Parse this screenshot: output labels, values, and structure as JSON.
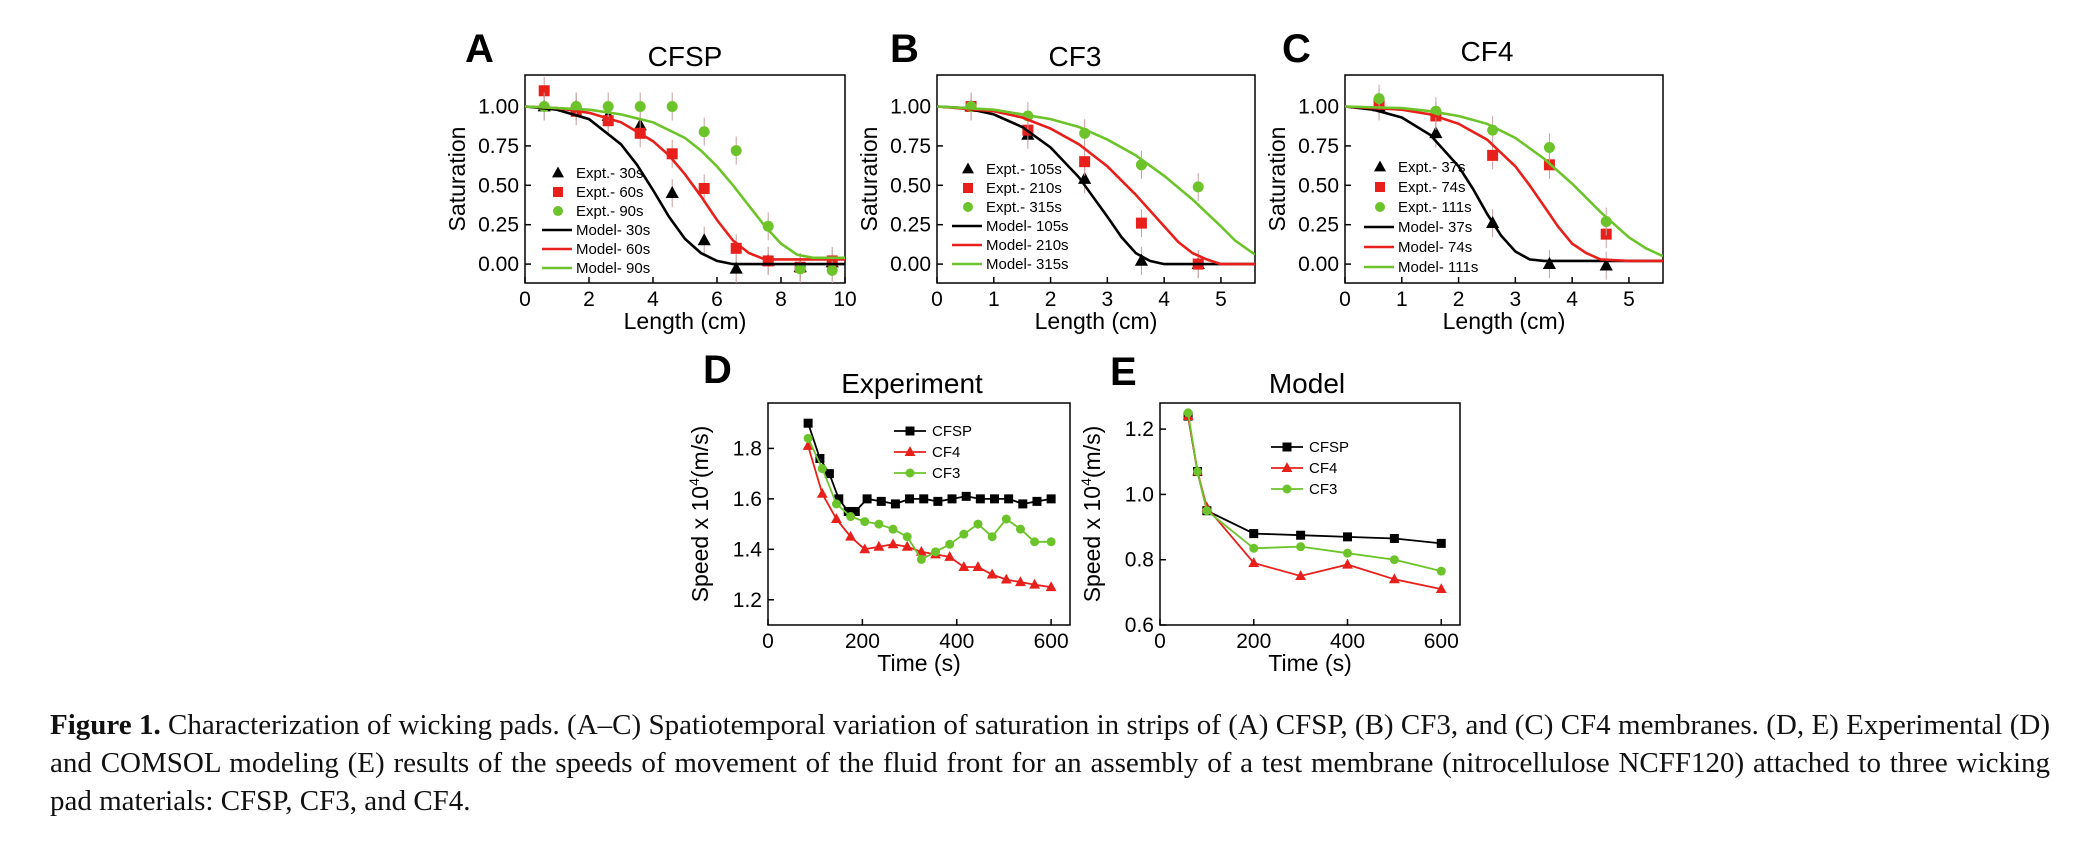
{
  "colors": {
    "black": "#000000",
    "red": "#e8201c",
    "green": "#6cc42a"
  },
  "chart_data": [
    {
      "id": "A",
      "type": "scatter",
      "letter": "A",
      "title": "CFSP",
      "xlabel": "Length (cm)",
      "ylabel": "Saturation",
      "xlim": [
        0,
        10
      ],
      "ylim": [
        -0.12,
        1.2
      ],
      "xticks": [
        0,
        2,
        4,
        6,
        8,
        10
      ],
      "xticklabels": [
        "0",
        "2",
        "4",
        "6",
        "8",
        "10"
      ],
      "yticks": [
        0,
        0.25,
        0.5,
        0.75,
        1.0
      ],
      "yticklabels": [
        "0.00",
        "0.25",
        "0.50",
        "0.75",
        "1.00"
      ],
      "legend_position": "left",
      "series": [
        {
          "name": "Expt.- 30s",
          "kind": "points",
          "marker": "triangle",
          "color": "#000000",
          "x": [
            0.6,
            1.6,
            2.6,
            3.6,
            4.6,
            5.6,
            6.6,
            7.6,
            8.6,
            9.6
          ],
          "y": [
            1.0,
            1.0,
            0.94,
            0.88,
            0.45,
            0.15,
            -0.03,
            0.02,
            -0.02,
            0.01
          ]
        },
        {
          "name": "Expt.- 60s",
          "kind": "points",
          "marker": "square",
          "color": "#e8201c",
          "x": [
            0.6,
            1.6,
            2.6,
            3.6,
            4.6,
            5.6,
            6.6,
            7.6,
            8.6,
            9.6
          ],
          "y": [
            1.1,
            0.97,
            0.91,
            0.83,
            0.7,
            0.48,
            0.1,
            0.02,
            -0.02,
            0.02
          ]
        },
        {
          "name": "Expt.- 90s",
          "kind": "points",
          "marker": "circle",
          "color": "#6cc42a",
          "x": [
            0.6,
            1.6,
            2.6,
            3.6,
            4.6,
            5.6,
            6.6,
            7.6,
            8.6,
            9.6
          ],
          "y": [
            1.0,
            1.0,
            1.0,
            1.0,
            1.0,
            0.84,
            0.72,
            0.24,
            -0.03,
            -0.04
          ]
        },
        {
          "name": "Model- 30s",
          "kind": "line",
          "color": "#000000",
          "x": [
            0,
            1,
            2,
            3,
            3.5,
            4,
            4.5,
            5,
            5.5,
            6,
            6.5,
            7,
            8,
            10
          ],
          "y": [
            1.0,
            0.98,
            0.92,
            0.76,
            0.63,
            0.47,
            0.3,
            0.16,
            0.07,
            0.02,
            0.0,
            0.0,
            0.0,
            0.0
          ]
        },
        {
          "name": "Model- 60s",
          "kind": "line",
          "color": "#e8201c",
          "x": [
            0,
            1,
            2,
            3,
            4,
            4.5,
            5,
            5.5,
            6,
            6.5,
            7,
            7.5,
            8,
            10
          ],
          "y": [
            1.0,
            0.99,
            0.96,
            0.9,
            0.78,
            0.69,
            0.57,
            0.43,
            0.28,
            0.15,
            0.07,
            0.03,
            0.03,
            0.03
          ]
        },
        {
          "name": "Model- 90s",
          "kind": "line",
          "color": "#6cc42a",
          "x": [
            0,
            1,
            2,
            3,
            4,
            5,
            5.5,
            6,
            6.5,
            7,
            7.5,
            8,
            8.5,
            9,
            10
          ],
          "y": [
            1.0,
            0.99,
            0.98,
            0.95,
            0.9,
            0.8,
            0.72,
            0.62,
            0.5,
            0.37,
            0.24,
            0.13,
            0.06,
            0.04,
            0.04
          ]
        }
      ]
    },
    {
      "id": "B",
      "type": "scatter",
      "letter": "B",
      "title": "CF3",
      "xlabel": "Length (cm)",
      "ylabel": "Saturation",
      "xlim": [
        0,
        5.6
      ],
      "ylim": [
        -0.12,
        1.2
      ],
      "xticks": [
        0,
        1,
        2,
        3,
        4,
        5
      ],
      "xticklabels": [
        "0",
        "1",
        "2",
        "3",
        "4",
        "5"
      ],
      "yticks": [
        0,
        0.25,
        0.5,
        0.75,
        1.0
      ],
      "yticklabels": [
        "0.00",
        "0.25",
        "0.50",
        "0.75",
        "1.00"
      ],
      "legend_position": "left",
      "series": [
        {
          "name": "Expt.- 105s",
          "kind": "points",
          "marker": "triangle",
          "color": "#000000",
          "x": [
            0.6,
            1.6,
            2.6,
            3.6,
            4.6
          ],
          "y": [
            1.0,
            0.82,
            0.54,
            0.02,
            0.0
          ]
        },
        {
          "name": "Expt.- 210s",
          "kind": "points",
          "marker": "square",
          "color": "#e8201c",
          "x": [
            0.6,
            1.6,
            2.6,
            3.6,
            4.6
          ],
          "y": [
            1.0,
            0.85,
            0.65,
            0.26,
            0.0
          ]
        },
        {
          "name": "Expt.- 315s",
          "kind": "points",
          "marker": "circle",
          "color": "#6cc42a",
          "x": [
            0.6,
            1.6,
            2.6,
            3.6,
            4.6
          ],
          "y": [
            1.0,
            0.94,
            0.83,
            0.63,
            0.49
          ]
        },
        {
          "name": "Model- 105s",
          "kind": "line",
          "color": "#000000",
          "x": [
            0,
            0.5,
            1,
            1.5,
            2,
            2.5,
            3,
            3.25,
            3.5,
            3.75,
            4,
            4.5,
            5.6
          ],
          "y": [
            1.0,
            0.99,
            0.95,
            0.87,
            0.74,
            0.55,
            0.3,
            0.17,
            0.07,
            0.02,
            0.0,
            0.0,
            0.0
          ]
        },
        {
          "name": "Model- 210s",
          "kind": "line",
          "color": "#e8201c",
          "x": [
            0,
            1,
            1.5,
            2,
            2.5,
            3,
            3.5,
            4,
            4.25,
            4.5,
            4.75,
            5,
            5.6
          ],
          "y": [
            1.0,
            0.97,
            0.93,
            0.86,
            0.76,
            0.62,
            0.44,
            0.24,
            0.14,
            0.07,
            0.03,
            0.0,
            0.0
          ]
        },
        {
          "name": "Model- 315s",
          "kind": "line",
          "color": "#6cc42a",
          "x": [
            0,
            1,
            2,
            2.5,
            3,
            3.5,
            4,
            4.5,
            5,
            5.25,
            5.6
          ],
          "y": [
            1.0,
            0.98,
            0.92,
            0.87,
            0.79,
            0.69,
            0.56,
            0.41,
            0.24,
            0.15,
            0.06
          ]
        }
      ]
    },
    {
      "id": "C",
      "type": "scatter",
      "letter": "C",
      "title": "CF4",
      "xlabel": "Length (cm)",
      "ylabel": "Saturation",
      "xlim": [
        0,
        5.6
      ],
      "ylim": [
        -0.12,
        1.2
      ],
      "xticks": [
        0,
        1,
        2,
        3,
        4,
        5
      ],
      "xticklabels": [
        "0",
        "1",
        "2",
        "3",
        "4",
        "5"
      ],
      "yticks": [
        0,
        0.25,
        0.5,
        0.75,
        1.0
      ],
      "yticklabels": [
        "0.00",
        "0.25",
        "0.50",
        "0.75",
        "1.00"
      ],
      "legend_position": "left",
      "series": [
        {
          "name": "Expt.- 37s",
          "kind": "points",
          "marker": "triangle",
          "color": "#000000",
          "x": [
            0.6,
            1.6,
            2.6,
            3.6,
            4.6
          ],
          "y": [
            1.0,
            0.83,
            0.26,
            0.0,
            -0.01
          ]
        },
        {
          "name": "Expt.- 74s",
          "kind": "points",
          "marker": "square",
          "color": "#e8201c",
          "x": [
            0.6,
            1.6,
            2.6,
            3.6,
            4.6
          ],
          "y": [
            1.02,
            0.94,
            0.69,
            0.63,
            0.19
          ]
        },
        {
          "name": "Expt.- 111s",
          "kind": "points",
          "marker": "circle",
          "color": "#6cc42a",
          "x": [
            0.6,
            1.6,
            2.6,
            3.6,
            4.6
          ],
          "y": [
            1.05,
            0.97,
            0.85,
            0.74,
            0.27
          ]
        },
        {
          "name": "Model- 37s",
          "kind": "line",
          "color": "#000000",
          "x": [
            0,
            0.5,
            1,
            1.5,
            2,
            2.25,
            2.5,
            2.75,
            3,
            3.25,
            3.5,
            4,
            5.6
          ],
          "y": [
            1.0,
            0.98,
            0.93,
            0.82,
            0.62,
            0.48,
            0.32,
            0.18,
            0.08,
            0.03,
            0.02,
            0.02,
            0.02
          ]
        },
        {
          "name": "Model- 74s",
          "kind": "line",
          "color": "#e8201c",
          "x": [
            0,
            0.5,
            1,
            1.5,
            2,
            2.5,
            3,
            3.25,
            3.5,
            3.75,
            4,
            4.25,
            4.5,
            5,
            5.6
          ],
          "y": [
            1.0,
            0.99,
            0.98,
            0.95,
            0.89,
            0.79,
            0.62,
            0.5,
            0.37,
            0.24,
            0.13,
            0.07,
            0.03,
            0.02,
            0.02
          ]
        },
        {
          "name": "Model- 111s",
          "kind": "line",
          "color": "#6cc42a",
          "x": [
            0,
            1,
            1.5,
            2,
            2.5,
            3,
            3.5,
            4,
            4.5,
            5,
            5.3,
            5.6
          ],
          "y": [
            1.0,
            0.99,
            0.97,
            0.94,
            0.89,
            0.8,
            0.67,
            0.51,
            0.33,
            0.17,
            0.1,
            0.05
          ]
        }
      ]
    },
    {
      "id": "D",
      "type": "line",
      "letter": "D",
      "title": "Experiment",
      "xlabel": "Time (s)",
      "ylabel_base": "Speed  x 10",
      "ylabel_sup": "4",
      "ylabel_unit": "(m/s)",
      "xlim": [
        0,
        640
      ],
      "ylim": [
        1.1,
        1.98
      ],
      "xticks": [
        0,
        200,
        400,
        600
      ],
      "xticklabels": [
        "0",
        "200",
        "400",
        "600"
      ],
      "yticks": [
        1.2,
        1.4,
        1.6,
        1.8
      ],
      "yticklabels": [
        "1.2",
        "1.4",
        "1.6",
        "1.8"
      ],
      "legend_position": "top-right",
      "series": [
        {
          "name": "CFSP",
          "kind": "linepoints",
          "marker": "square",
          "color": "#000000",
          "x": [
            85,
            110,
            130,
            150,
            170,
            185,
            210,
            240,
            270,
            300,
            330,
            360,
            390,
            420,
            450,
            480,
            510,
            540,
            570,
            600
          ],
          "y": [
            1.9,
            1.76,
            1.7,
            1.6,
            1.55,
            1.55,
            1.6,
            1.59,
            1.58,
            1.6,
            1.6,
            1.59,
            1.6,
            1.61,
            1.6,
            1.6,
            1.6,
            1.58,
            1.59,
            1.6
          ]
        },
        {
          "name": "CF4",
          "kind": "linepoints",
          "marker": "triangle",
          "color": "#e8201c",
          "x": [
            85,
            115,
            145,
            175,
            205,
            235,
            265,
            295,
            325,
            355,
            385,
            415,
            445,
            475,
            505,
            535,
            565,
            600
          ],
          "y": [
            1.81,
            1.62,
            1.52,
            1.45,
            1.4,
            1.41,
            1.42,
            1.41,
            1.39,
            1.38,
            1.37,
            1.33,
            1.33,
            1.3,
            1.28,
            1.27,
            1.26,
            1.25
          ]
        },
        {
          "name": "CF3",
          "kind": "linepoints",
          "marker": "circle",
          "color": "#6cc42a",
          "x": [
            85,
            115,
            145,
            175,
            205,
            235,
            265,
            295,
            325,
            355,
            385,
            415,
            445,
            475,
            505,
            535,
            565,
            600
          ],
          "y": [
            1.84,
            1.72,
            1.58,
            1.53,
            1.51,
            1.5,
            1.48,
            1.45,
            1.36,
            1.39,
            1.42,
            1.46,
            1.5,
            1.45,
            1.52,
            1.48,
            1.43,
            1.43
          ]
        }
      ]
    },
    {
      "id": "E",
      "type": "line",
      "letter": "E",
      "title": "Model",
      "xlabel": "Time (s)",
      "ylabel_base": "Speed  x 10",
      "ylabel_sup": "4",
      "ylabel_unit": "(m/s)",
      "xlim": [
        0,
        640
      ],
      "ylim": [
        0.6,
        1.28
      ],
      "xticks": [
        0,
        200,
        400,
        600
      ],
      "xticklabels": [
        "0",
        "200",
        "400",
        "600"
      ],
      "yticks": [
        0.6,
        0.8,
        1.0,
        1.2
      ],
      "yticklabels": [
        "0.6",
        "0.8",
        "1.0",
        "1.2"
      ],
      "legend_position": "top-right",
      "series": [
        {
          "name": "CFSP",
          "kind": "linepoints",
          "marker": "square",
          "color": "#000000",
          "x": [
            60,
            80,
            100,
            200,
            300,
            400,
            500,
            600
          ],
          "y": [
            1.24,
            1.07,
            0.95,
            0.88,
            0.875,
            0.87,
            0.865,
            0.85
          ]
        },
        {
          "name": "CF4",
          "kind": "linepoints",
          "marker": "triangle",
          "color": "#e8201c",
          "x": [
            60,
            80,
            100,
            200,
            300,
            400,
            500,
            600
          ],
          "y": [
            1.24,
            1.07,
            0.96,
            0.79,
            0.75,
            0.785,
            0.74,
            0.71
          ]
        },
        {
          "name": "CF3",
          "kind": "linepoints",
          "marker": "circle",
          "color": "#6cc42a",
          "x": [
            60,
            80,
            100,
            200,
            300,
            400,
            500,
            600
          ],
          "y": [
            1.25,
            1.07,
            0.95,
            0.835,
            0.84,
            0.82,
            0.8,
            0.765
          ]
        }
      ]
    }
  ],
  "caption": {
    "label": "Figure 1.",
    "text": " Characterization of wicking pads. (A–C) Spatiotemporal variation of saturation in strips of (A) CFSP, (B) CF3, and (C) CF4 membranes. (D, E) Experimental (D) and COMSOL modeling (E) results of the speeds of movement of the fluid front for an assembly of a test membrane (nitrocellulose NCFF120) attached to three wicking pad materials: CFSP, CF3, and CF4."
  }
}
